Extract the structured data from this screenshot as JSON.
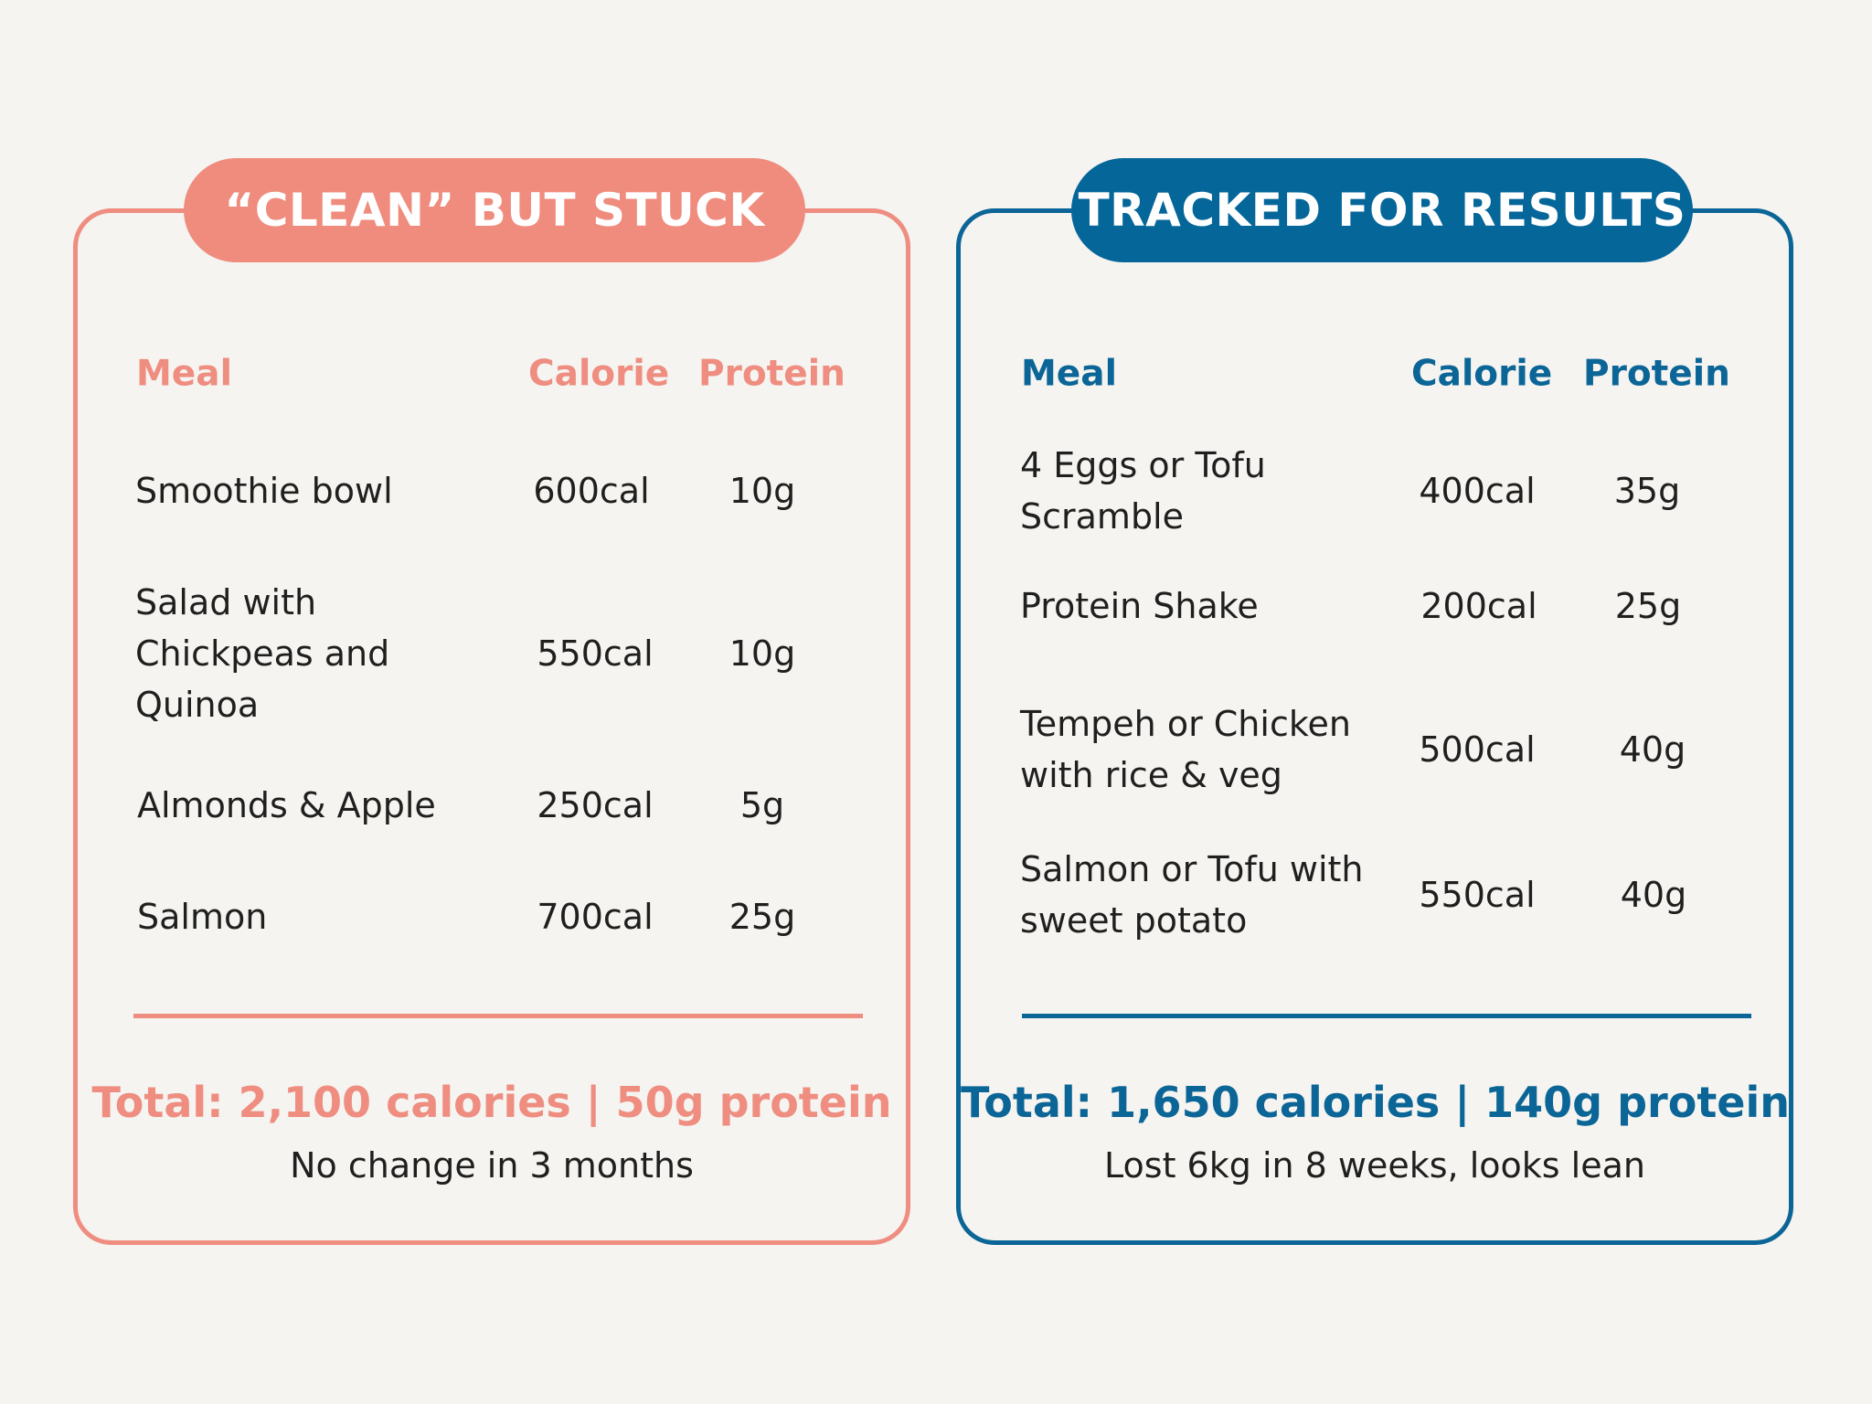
{
  "colors": {
    "coral": "#ee8d80",
    "blue": "#0b6597",
    "background": "#f5f4f0"
  },
  "left": {
    "title": "“CLEAN” BUT STUCK",
    "headers": {
      "meal": "Meal",
      "calorie": "Calorie",
      "protein": "Protein"
    },
    "rows": [
      {
        "meal": "Smoothie bowl",
        "calorie": "600cal",
        "protein": "10g"
      },
      {
        "meal": "Salad with Chickpeas and Quinoa",
        "calorie": "550cal",
        "protein": "10g"
      },
      {
        "meal": "Almonds & Apple",
        "calorie": "250cal",
        "protein": "5g"
      },
      {
        "meal": "Salmon",
        "calorie": "700cal",
        "protein": "25g"
      }
    ],
    "total": "Total: 2,100 calories | 50g protein",
    "note": "No change in 3 months"
  },
  "right": {
    "title": "TRACKED FOR RESULTS",
    "headers": {
      "meal": "Meal",
      "calorie": "Calorie",
      "protein": "Protein"
    },
    "rows": [
      {
        "meal": "4 Eggs or Tofu Scramble",
        "calorie": "400cal",
        "protein": "35g"
      },
      {
        "meal": "Protein Shake",
        "calorie": "200cal",
        "protein": "25g"
      },
      {
        "meal": "Tempeh or Chicken with rice & veg",
        "calorie": "500cal",
        "protein": "40g"
      },
      {
        "meal": "Salmon or Tofu with sweet potato",
        "calorie": "550cal",
        "protein": "40g"
      }
    ],
    "total": "Total: 1,650 calories | 140g protein",
    "note": "Lost 6kg in 8 weeks, looks lean"
  }
}
